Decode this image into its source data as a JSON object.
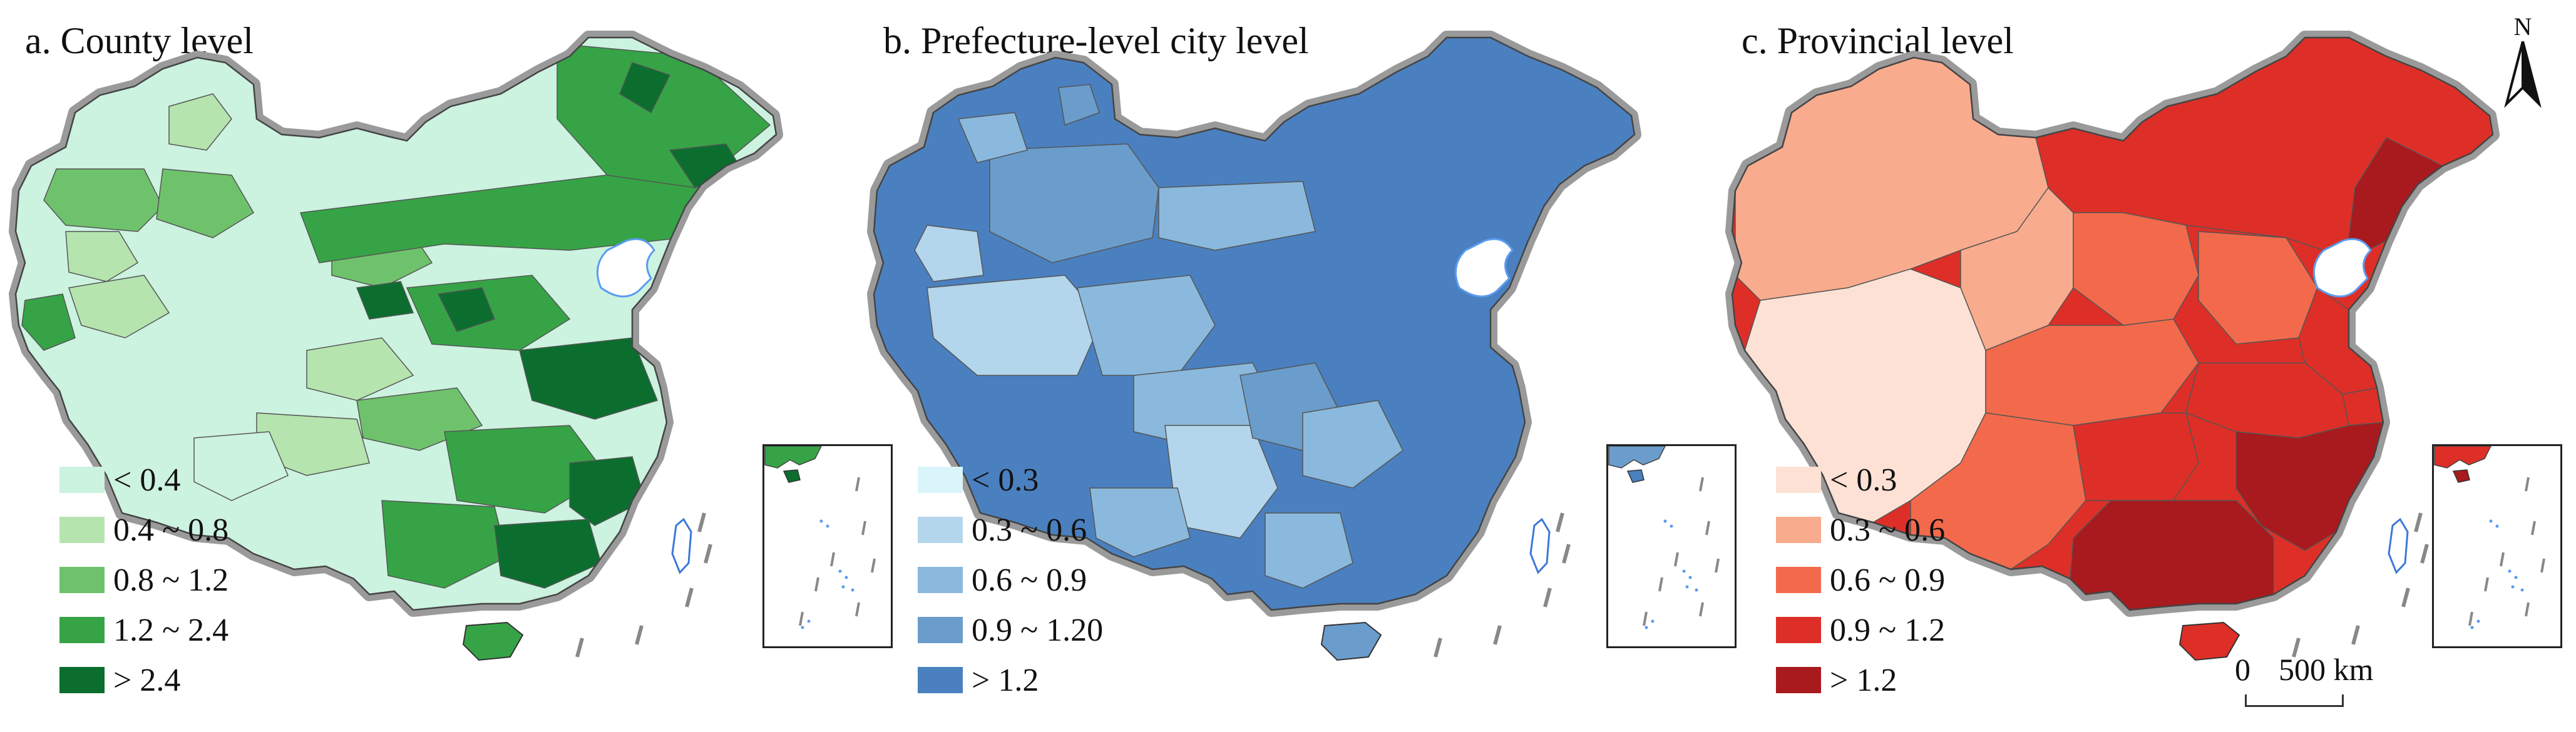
{
  "panels": [
    {
      "title": "a. County level",
      "palette": [
        "#ccf2e0",
        "#b5e4ae",
        "#6fc26c",
        "#36a446",
        "#0b6e2e"
      ],
      "legend": [
        {
          "label": "< 0.4",
          "color": "#ccf2e0"
        },
        {
          "label": "0.4 ~ 0.8",
          "color": "#b5e4ae"
        },
        {
          "label": "0.8 ~ 1.2",
          "color": "#6fc26c"
        },
        {
          "label": "1.2 ~ 2.4",
          "color": "#36a446"
        },
        {
          "label": "> 2.4",
          "color": "#0b6e2e"
        }
      ]
    },
    {
      "title": "b. Prefecture-level city level",
      "palette": [
        "#d9f5fb",
        "#b3d6ec",
        "#8ab9dd",
        "#6a9dcc",
        "#4a80bf"
      ],
      "legend": [
        {
          "label": "< 0.3",
          "color": "#d9f5fb"
        },
        {
          "label": "0.3 ~ 0.6",
          "color": "#b3d6ec"
        },
        {
          "label": "0.6 ~ 0.9",
          "color": "#8ab9dd"
        },
        {
          "label": "0.9 ~ 1.20",
          "color": "#6a9dcc"
        },
        {
          "label": "> 1.2",
          "color": "#4a80bf"
        }
      ]
    },
    {
      "title": "c. Provincial level",
      "palette": [
        "#fde1d5",
        "#f9ab8d",
        "#f26a4b",
        "#dd2f27",
        "#a81a1d"
      ],
      "legend": [
        {
          "label": "< 0.3",
          "color": "#fde1d5"
        },
        {
          "label": "0.3 ~ 0.6",
          "color": "#f9ab8d"
        },
        {
          "label": "0.6 ~ 0.9",
          "color": "#f26a4b"
        },
        {
          "label": "0.9 ~ 1.2",
          "color": "#dd2f27"
        },
        {
          "label": "> 1.2",
          "color": "#a81a1d"
        }
      ]
    }
  ],
  "north_arrow": {
    "label": "N"
  },
  "scale_bar": {
    "zero": "0",
    "distance": "500 km"
  }
}
